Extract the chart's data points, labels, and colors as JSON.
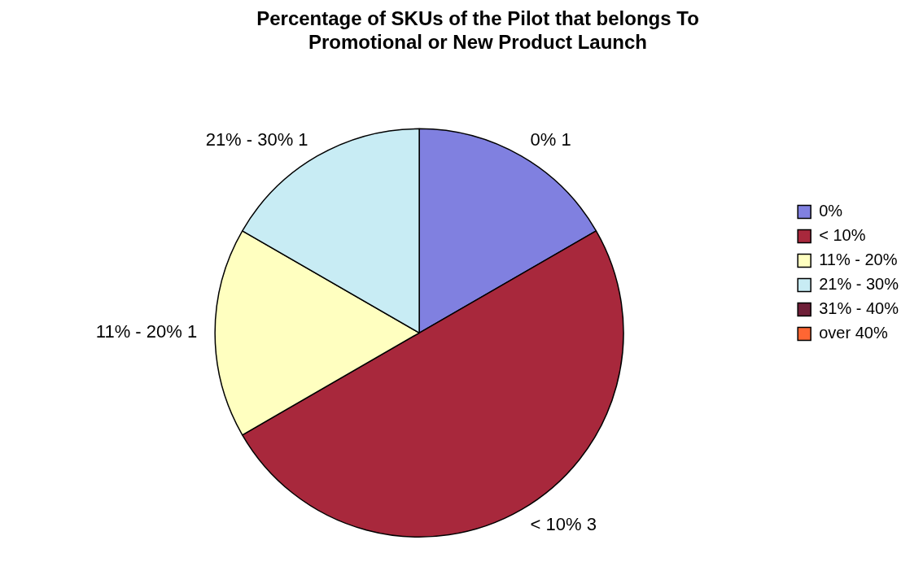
{
  "chart_data": {
    "type": "pie",
    "title": "Percentage of SKUs of the Pilot that belongs To\nPromotional or New Product Launch",
    "categories": [
      "0%",
      "< 10%",
      "11% - 20%",
      "21% - 30%",
      "31% - 40%",
      "over 40%"
    ],
    "values": [
      1,
      3,
      1,
      1,
      0,
      0
    ],
    "value_labels": [
      "1",
      "3",
      "1",
      "1",
      null,
      null
    ],
    "colors": [
      "#8080e0",
      "#a8283c",
      "#ffffc0",
      "#c8ecf4",
      "#6e1f38",
      "#ff6633"
    ],
    "legend": "right"
  }
}
